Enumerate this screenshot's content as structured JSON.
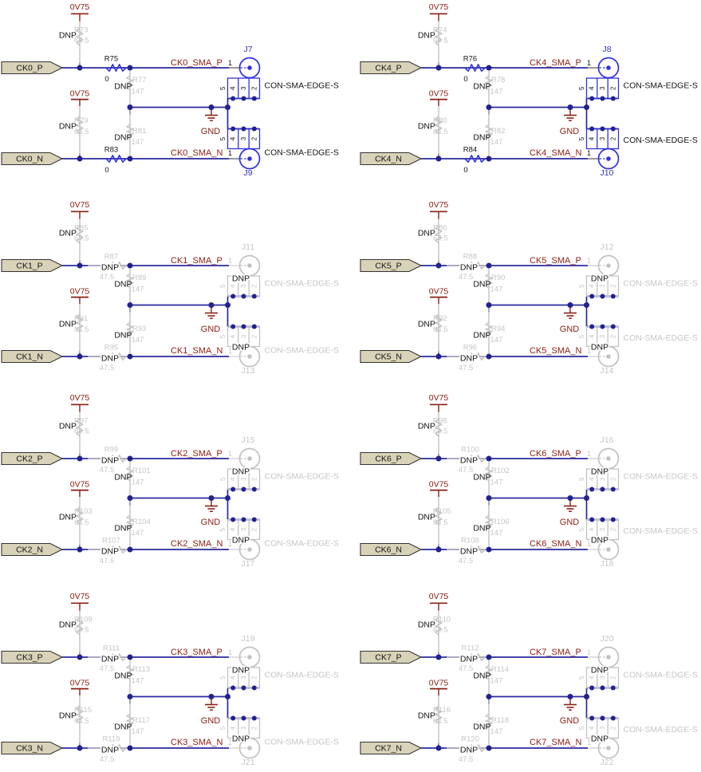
{
  "schematic": {
    "power_net": "0V75",
    "ground_net": "GND",
    "connector_part": "CON-SMA-EDGE-S",
    "dnp_label": "DNP",
    "sma_pin1": "1",
    "edge_pin_numbers": [
      "5",
      "4",
      "3",
      "2"
    ],
    "colors": {
      "wire": "#2A2A9E",
      "junction": "#22228F",
      "component_blue": "#3232DC",
      "designator_blue": "#3333CC",
      "net_label": "#8B2015",
      "power_symbol": "#8B2015",
      "dnp_gray_stroke": "#C2C2C2",
      "dnp_gray_text": "#C6C6C6",
      "port_fill": "#D8D3B8",
      "black": "#141414"
    },
    "blocks": [
      {
        "name": "CK0",
        "port_p": "CK0_P",
        "port_n": "CK0_N",
        "net_p": "CK0_SMA_P",
        "net_n": "CK0_SMA_N",
        "resistors": {
          "pullup_p": {
            "ref": "R73",
            "value": "64.5",
            "dnp": true
          },
          "series_p": {
            "ref": "R75",
            "value": "0",
            "dnp": false
          },
          "shunt_p": {
            "ref": "R77",
            "value": "147",
            "dnp": true
          },
          "pullup_n": {
            "ref": "R79",
            "value": "64.5",
            "dnp": true
          },
          "shunt_n": {
            "ref": "R81",
            "value": "147",
            "dnp": true
          },
          "series_n": {
            "ref": "R83",
            "value": "0",
            "dnp": false
          }
        },
        "connectors": {
          "p": {
            "ref": "J7",
            "dnp": false
          },
          "n": {
            "ref": "J9",
            "dnp": false
          }
        }
      },
      {
        "name": "CK4",
        "port_p": "CK4_P",
        "port_n": "CK4_N",
        "net_p": "CK4_SMA_P",
        "net_n": "CK4_SMA_N",
        "resistors": {
          "pullup_p": {
            "ref": "R74",
            "value": "64.5",
            "dnp": true
          },
          "series_p": {
            "ref": "R76",
            "value": "0",
            "dnp": false
          },
          "shunt_p": {
            "ref": "R78",
            "value": "147",
            "dnp": true
          },
          "pullup_n": {
            "ref": "R80",
            "value": "64.5",
            "dnp": true
          },
          "shunt_n": {
            "ref": "R82",
            "value": "147",
            "dnp": true
          },
          "series_n": {
            "ref": "R84",
            "value": "0",
            "dnp": false
          }
        },
        "connectors": {
          "p": {
            "ref": "J8",
            "dnp": false
          },
          "n": {
            "ref": "J10",
            "dnp": false
          }
        }
      },
      {
        "name": "CK1",
        "port_p": "CK1_P",
        "port_n": "CK1_N",
        "net_p": "CK1_SMA_P",
        "net_n": "CK1_SMA_N",
        "resistors": {
          "pullup_p": {
            "ref": "R85",
            "value": "64.5",
            "dnp": true
          },
          "series_p": {
            "ref": "R87",
            "value": "47.5",
            "dnp": true
          },
          "shunt_p": {
            "ref": "R89",
            "value": "147",
            "dnp": true
          },
          "pullup_n": {
            "ref": "R91",
            "value": "64.5",
            "dnp": true
          },
          "shunt_n": {
            "ref": "R93",
            "value": "147",
            "dnp": true
          },
          "series_n": {
            "ref": "R95",
            "value": "47.5",
            "dnp": true
          }
        },
        "connectors": {
          "p": {
            "ref": "J11",
            "dnp": true
          },
          "n": {
            "ref": "J13",
            "dnp": true
          }
        }
      },
      {
        "name": "CK5",
        "port_p": "CK5_P",
        "port_n": "CK5_N",
        "net_p": "CK5_SMA_P",
        "net_n": "CK5_SMA_N",
        "resistors": {
          "pullup_p": {
            "ref": "R86",
            "value": "64.5",
            "dnp": true
          },
          "series_p": {
            "ref": "R88",
            "value": "47.5",
            "dnp": true
          },
          "shunt_p": {
            "ref": "R90",
            "value": "147",
            "dnp": true
          },
          "pullup_n": {
            "ref": "R92",
            "value": "64.5",
            "dnp": true
          },
          "shunt_n": {
            "ref": "R94",
            "value": "147",
            "dnp": true
          },
          "series_n": {
            "ref": "R96",
            "value": "47.5",
            "dnp": true
          }
        },
        "connectors": {
          "p": {
            "ref": "J12",
            "dnp": true
          },
          "n": {
            "ref": "J14",
            "dnp": true
          }
        }
      },
      {
        "name": "CK2",
        "port_p": "CK2_P",
        "port_n": "CK2_N",
        "net_p": "CK2_SMA_P",
        "net_n": "CK2_SMA_N",
        "resistors": {
          "pullup_p": {
            "ref": "R97",
            "value": "64.5",
            "dnp": true
          },
          "series_p": {
            "ref": "R99",
            "value": "47.5",
            "dnp": true
          },
          "shunt_p": {
            "ref": "R101",
            "value": "147",
            "dnp": true
          },
          "pullup_n": {
            "ref": "R103",
            "value": "64.5",
            "dnp": true
          },
          "shunt_n": {
            "ref": "R104",
            "value": "147",
            "dnp": true
          },
          "series_n": {
            "ref": "R107",
            "value": "47.5",
            "dnp": true
          }
        },
        "connectors": {
          "p": {
            "ref": "J15",
            "dnp": true
          },
          "n": {
            "ref": "J17",
            "dnp": true
          }
        }
      },
      {
        "name": "CK6",
        "port_p": "CK6_P",
        "port_n": "CK6_N",
        "net_p": "CK6_SMA_P",
        "net_n": "CK6_SMA_N",
        "resistors": {
          "pullup_p": {
            "ref": "R98",
            "value": "64.5",
            "dnp": true
          },
          "series_p": {
            "ref": "R100",
            "value": "47.5",
            "dnp": true
          },
          "shunt_p": {
            "ref": "R102",
            "value": "147",
            "dnp": true
          },
          "pullup_n": {
            "ref": "R105",
            "value": "64.5",
            "dnp": true
          },
          "shunt_n": {
            "ref": "R106",
            "value": "147",
            "dnp": true
          },
          "series_n": {
            "ref": "R108",
            "value": "47.5",
            "dnp": true
          }
        },
        "connectors": {
          "p": {
            "ref": "J16",
            "dnp": true
          },
          "n": {
            "ref": "J18",
            "dnp": true
          }
        }
      },
      {
        "name": "CK3",
        "port_p": "CK3_P",
        "port_n": "CK3_N",
        "net_p": "CK3_SMA_P",
        "net_n": "CK3_SMA_N",
        "resistors": {
          "pullup_p": {
            "ref": "R109",
            "value": "64.5",
            "dnp": true
          },
          "series_p": {
            "ref": "R111",
            "value": "47.5",
            "dnp": true
          },
          "shunt_p": {
            "ref": "R113",
            "value": "147",
            "dnp": true
          },
          "pullup_n": {
            "ref": "R115",
            "value": "64.5",
            "dnp": true
          },
          "shunt_n": {
            "ref": "R117",
            "value": "147",
            "dnp": true
          },
          "series_n": {
            "ref": "R119",
            "value": "47.5",
            "dnp": true
          }
        },
        "connectors": {
          "p": {
            "ref": "J19",
            "dnp": true
          },
          "n": {
            "ref": "J21",
            "dnp": true
          }
        }
      },
      {
        "name": "CK7",
        "port_p": "CK7_P",
        "port_n": "CK7_N",
        "net_p": "CK7_SMA_P",
        "net_n": "CK7_SMA_N",
        "resistors": {
          "pullup_p": {
            "ref": "R110",
            "value": "64.5",
            "dnp": true
          },
          "series_p": {
            "ref": "R112",
            "value": "47.5",
            "dnp": true
          },
          "shunt_p": {
            "ref": "R114",
            "value": "147",
            "dnp": true
          },
          "pullup_n": {
            "ref": "R116",
            "value": "64.5",
            "dnp": true
          },
          "shunt_n": {
            "ref": "R118",
            "value": "147",
            "dnp": true
          },
          "series_n": {
            "ref": "R120",
            "value": "47.5",
            "dnp": true
          }
        },
        "connectors": {
          "p": {
            "ref": "J20",
            "dnp": true
          },
          "n": {
            "ref": "J22",
            "dnp": true
          }
        }
      }
    ]
  }
}
